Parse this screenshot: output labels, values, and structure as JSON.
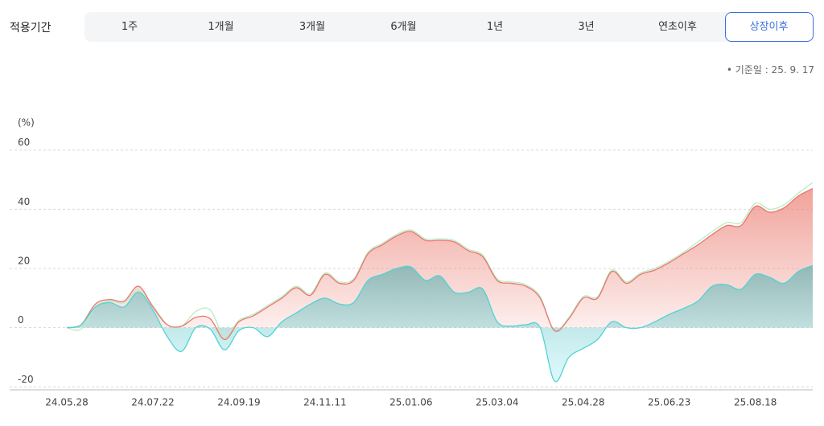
{
  "filter": {
    "label": "적용기간",
    "tabs": [
      "1주",
      "1개월",
      "3개월",
      "6개월",
      "1년",
      "3년",
      "연초이후",
      "상장이후"
    ],
    "active": 7
  },
  "reference_date": "기준일 : 25. 9. 17",
  "chart_data": {
    "type": "area",
    "y_unit": "(%)",
    "categories": [
      "24.05.28",
      null,
      null,
      null,
      null,
      null,
      "24.07.22",
      null,
      null,
      null,
      null,
      null,
      "24.09.19",
      null,
      null,
      null,
      null,
      null,
      "24.11.11",
      null,
      null,
      null,
      null,
      null,
      "25.01.06",
      null,
      null,
      null,
      null,
      null,
      "25.03.04",
      null,
      null,
      null,
      null,
      null,
      "25.04.28",
      null,
      null,
      null,
      null,
      null,
      "25.06.23",
      null,
      null,
      null,
      null,
      null,
      "25.08.18",
      null,
      null,
      null,
      null
    ],
    "series": [
      {
        "color": "#b9ecc3",
        "style": "line",
        "values": [
          0,
          -0.5,
          7,
          9,
          8.5,
          12.5,
          7.5,
          1,
          0.5,
          5.5,
          6,
          -3,
          2.5,
          4.5,
          7.5,
          10.5,
          14,
          11.5,
          18.5,
          15.5,
          16.5,
          25.5,
          28.5,
          31.5,
          33,
          30,
          30,
          29.5,
          26.5,
          24.5,
          16.5,
          15.5,
          14.5,
          10.5,
          -1,
          3.5,
          10.5,
          10.5,
          19.5,
          15.5,
          18.5,
          20,
          22.5,
          25.5,
          29,
          32.5,
          35.5,
          35.5,
          42,
          40,
          41.5,
          45.5,
          49
        ]
      },
      {
        "color": "#e8776d",
        "style": "area",
        "values": [
          0,
          1,
          8,
          9.5,
          9,
          14,
          7,
          1,
          0.5,
          3.5,
          3,
          -4,
          2,
          4,
          7,
          10,
          13.5,
          11,
          18,
          15,
          16,
          25,
          28,
          31,
          32.5,
          29.5,
          29.5,
          29,
          26,
          24,
          16,
          15,
          14,
          10,
          -1,
          3,
          10,
          10,
          19,
          15,
          18,
          19.5,
          22,
          25,
          28,
          31.5,
          34.5,
          34.5,
          41,
          39,
          40.5,
          44.5,
          47
        ]
      },
      {
        "color": "#4fd3d6",
        "style": "area",
        "values": [
          0,
          1,
          7,
          8.5,
          7,
          12,
          6,
          -3,
          -8,
          0,
          -0.5,
          -7.5,
          -1,
          0,
          -3,
          2,
          5,
          8,
          10,
          8,
          8.5,
          16,
          18,
          20,
          20.5,
          16,
          17.5,
          12,
          12,
          13,
          2,
          0.5,
          1,
          0,
          -18,
          -10,
          -7,
          -4,
          2,
          0,
          0,
          2,
          4.5,
          6.5,
          9,
          14,
          14.5,
          13,
          18,
          17,
          15,
          19,
          21
        ]
      }
    ],
    "ylim": [
      -21,
      64
    ],
    "yticks": [
      60,
      40,
      20,
      0,
      -20
    ],
    "grid": true
  }
}
